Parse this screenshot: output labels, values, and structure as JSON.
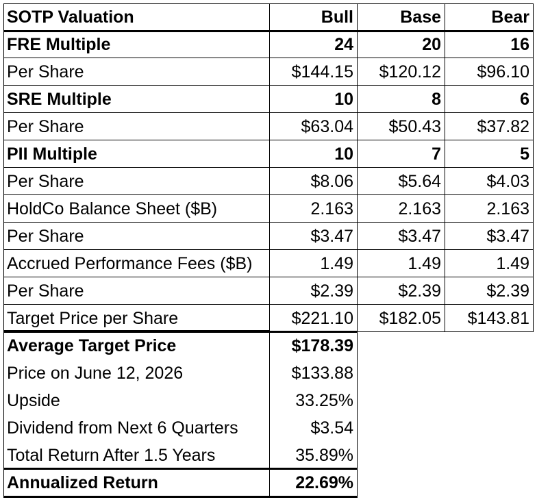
{
  "colors": {
    "bull": "#c6dfb5",
    "base": "#fce4a0",
    "bear": "#ec6661"
  },
  "header": {
    "title": "SOTP Valuation",
    "bull": "Bull",
    "base": "Base",
    "bear": "Bear"
  },
  "rows": [
    {
      "label": "FRE Multiple",
      "bull": "24",
      "base": "20",
      "bear": "16",
      "bold": true
    },
    {
      "label": "Per Share",
      "bull": "$144.15",
      "base": "$120.12",
      "bear": "$96.10"
    },
    {
      "label": "SRE Multiple",
      "bull": "10",
      "base": "8",
      "bear": "6",
      "bold": true
    },
    {
      "label": "Per Share",
      "bull": "$63.04",
      "base": "$50.43",
      "bear": "$37.82"
    },
    {
      "label": "PII Multiple",
      "bull": "10",
      "base": "7",
      "bear": "5",
      "bold": true
    },
    {
      "label": "Per Share",
      "bull": "$8.06",
      "base": "$5.64",
      "bear": "$4.03"
    },
    {
      "label": "HoldCo Balance Sheet ($B)",
      "bull": "2.163",
      "base": "2.163",
      "bear": "2.163"
    },
    {
      "label": "Per Share",
      "bull": "$3.47",
      "base": "$3.47",
      "bear": "$3.47"
    },
    {
      "label": "Accrued Performance Fees ($B)",
      "bull": "1.49",
      "base": "1.49",
      "bear": "1.49"
    },
    {
      "label": "Per Share",
      "bull": "$2.39",
      "base": "$2.39",
      "bear": "$2.39"
    },
    {
      "label": "Target Price per Share",
      "bull": "$221.10",
      "base": "$182.05",
      "bear": "$143.81"
    }
  ],
  "summary": [
    {
      "label": "Average Target Price",
      "value": "$178.39",
      "bold": true
    },
    {
      "label": "Price on June 12, 2026",
      "value": "$133.88"
    },
    {
      "label": "Upside",
      "value": "33.25%"
    },
    {
      "label": "Dividend from Next 6 Quarters",
      "value": "$3.54"
    },
    {
      "label": "Total Return After 1.5 Years",
      "value": "35.89%"
    },
    {
      "label": "Annualized Return",
      "value": "22.69%",
      "bold": true
    }
  ]
}
